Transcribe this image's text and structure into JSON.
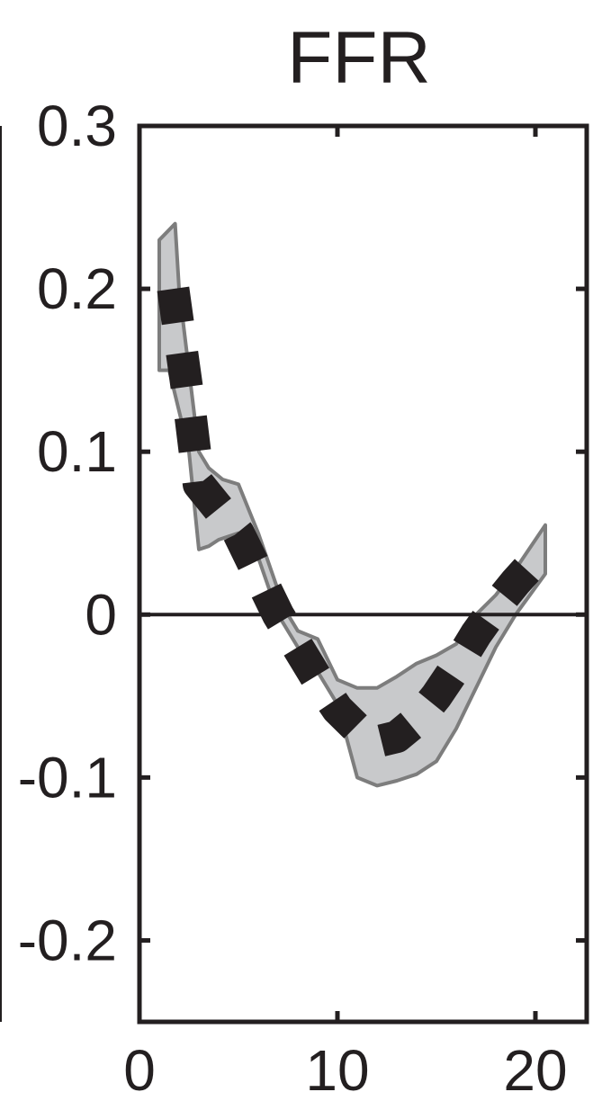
{
  "chart_data": {
    "type": "line",
    "title": "FFR",
    "xlabel": "",
    "ylabel": "",
    "xlim": [
      1,
      20.5
    ],
    "ylim": [
      -0.25,
      0.3
    ],
    "grid": false,
    "legend": "none",
    "x_ticks": [
      {
        "value": 0,
        "label": "0"
      },
      {
        "value": 10,
        "label": "10"
      },
      {
        "value": 20,
        "label": "20"
      }
    ],
    "y_ticks": [
      {
        "value": 0.3,
        "label": "0.3"
      },
      {
        "value": 0.2,
        "label": "0.2"
      },
      {
        "value": 0.1,
        "label": "0.1"
      },
      {
        "value": 0,
        "label": "0"
      },
      {
        "value": -0.1,
        "label": "-0.1"
      },
      {
        "value": -0.2,
        "label": "-0.2"
      }
    ],
    "zero_line": 0,
    "series": [
      {
        "style": "dashed",
        "color": "#231f20",
        "x": [
          1.7,
          2.5,
          3.0,
          4.0,
          5.0,
          6.0,
          7.0,
          8.0,
          9.0,
          10.0,
          11.0,
          12.0,
          13.0,
          14.0,
          15.0,
          16.0,
          17.0,
          18.0,
          19.0,
          20.5
        ],
        "y": [
          0.2,
          0.13,
          0.08,
          0.065,
          0.05,
          0.025,
          0.0,
          -0.02,
          -0.04,
          -0.058,
          -0.07,
          -0.078,
          -0.075,
          -0.065,
          -0.05,
          -0.032,
          -0.012,
          0.005,
          0.02,
          0.04
        ]
      }
    ],
    "band": {
      "color": "#c8c9cb",
      "edge_color": "#7d7d7d",
      "upper": {
        "x": [
          1.0,
          1.8,
          2.0,
          2.5,
          3.0,
          3.5,
          4.2,
          5.0,
          6.0,
          7.0,
          7.5,
          8.0,
          9.0,
          10.0,
          11.0,
          12.0,
          13.0,
          14.0,
          15.0,
          16.0,
          17.0,
          18.0,
          19.0,
          20.5
        ],
        "y": [
          0.23,
          0.24,
          0.2,
          0.15,
          0.1,
          0.09,
          0.083,
          0.08,
          0.05,
          0.015,
          0.0,
          -0.01,
          -0.015,
          -0.04,
          -0.045,
          -0.045,
          -0.038,
          -0.03,
          -0.025,
          -0.018,
          0.0,
          0.012,
          0.028,
          0.055
        ]
      },
      "lower": {
        "x": [
          1.0,
          1.5,
          2.5,
          3.0,
          3.5,
          4.0,
          5.0,
          6.0,
          7.0,
          8.0,
          9.0,
          10.0,
          11.0,
          12.0,
          13.0,
          14.0,
          15.0,
          16.0,
          17.0,
          18.0,
          19.0,
          20.5
        ],
        "y": [
          0.15,
          0.15,
          0.1,
          0.04,
          0.042,
          0.046,
          0.05,
          0.035,
          0.0,
          -0.02,
          -0.035,
          -0.055,
          -0.1,
          -0.105,
          -0.102,
          -0.098,
          -0.09,
          -0.07,
          -0.045,
          -0.02,
          0.0,
          0.025
        ]
      }
    }
  }
}
